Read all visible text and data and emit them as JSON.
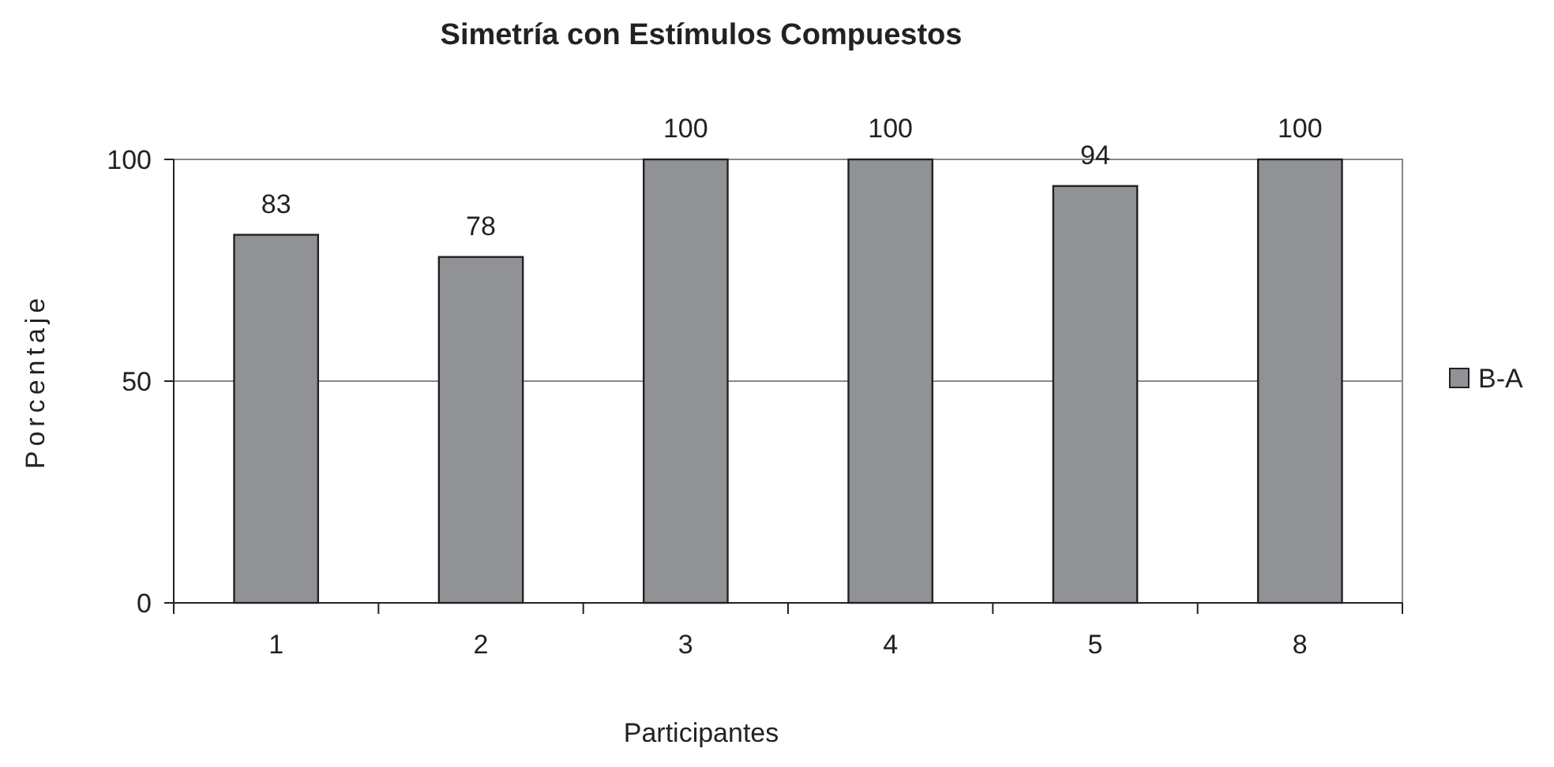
{
  "chart_data": {
    "type": "bar",
    "title": "Simetría con Estímulos Compuestos",
    "xlabel": "Participantes",
    "ylabel": "Porcentaje",
    "categories": [
      "1",
      "2",
      "3",
      "4",
      "5",
      "8"
    ],
    "series": [
      {
        "name": "B-A",
        "color": "#909296",
        "values": [
          83,
          78,
          100,
          100,
          94,
          100
        ]
      }
    ],
    "ylim": [
      0,
      100
    ],
    "yticks": [
      0,
      50,
      100
    ],
    "grid": "y",
    "legend": "right",
    "data_labels": true
  }
}
